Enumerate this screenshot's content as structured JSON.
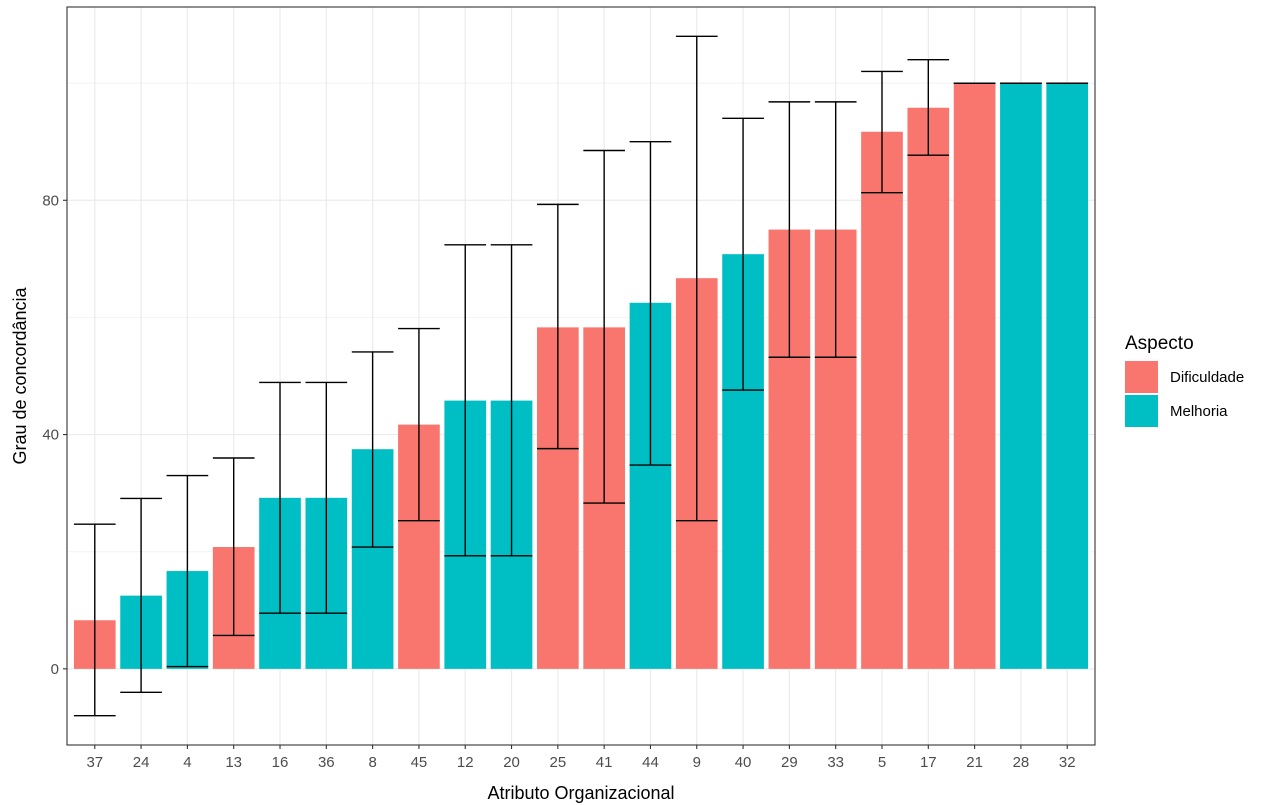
{
  "chart_data": {
    "type": "bar",
    "xlabel": "Atributo Organizacional",
    "ylabel": "Grau de concordância",
    "ylim": [
      -13,
      113
    ],
    "yticks": [
      "0",
      "40",
      "80"
    ],
    "grid": true,
    "legend": {
      "title": "Aspecto",
      "placement": "right",
      "entries": [
        {
          "name": "Dificuldade",
          "color": "#F8766D"
        },
        {
          "name": "Melhoria",
          "color": "#00BFC4"
        }
      ]
    },
    "categories": [
      "37",
      "24",
      "4",
      "13",
      "16",
      "36",
      "8",
      "45",
      "12",
      "20",
      "25",
      "41",
      "44",
      "9",
      "40",
      "29",
      "33",
      "5",
      "17",
      "21",
      "28",
      "32"
    ],
    "aspect": [
      "Dificuldade",
      "Melhoria",
      "Melhoria",
      "Dificuldade",
      "Melhoria",
      "Melhoria",
      "Melhoria",
      "Dificuldade",
      "Melhoria",
      "Melhoria",
      "Dificuldade",
      "Dificuldade",
      "Melhoria",
      "Dificuldade",
      "Melhoria",
      "Dificuldade",
      "Dificuldade",
      "Dificuldade",
      "Dificuldade",
      "Dificuldade",
      "Melhoria",
      "Melhoria"
    ],
    "values": [
      8.3,
      12.5,
      16.7,
      20.8,
      29.2,
      29.2,
      37.5,
      41.7,
      45.8,
      45.8,
      58.3,
      58.3,
      62.5,
      66.7,
      70.8,
      75.0,
      75.0,
      91.7,
      95.8,
      100.0,
      100.0,
      100.0
    ],
    "error_low": [
      -8,
      -4,
      0.4,
      5.7,
      9.5,
      9.5,
      20.8,
      25.3,
      19.3,
      19.3,
      37.6,
      28.3,
      34.8,
      25.3,
      47.6,
      53.2,
      53.2,
      81.3,
      87.7,
      100.0,
      100.0,
      100.0
    ],
    "error_high": [
      24.7,
      29.1,
      33.0,
      36.0,
      48.9,
      48.9,
      54.1,
      58.1,
      72.4,
      72.4,
      79.3,
      88.5,
      90.0,
      108.0,
      94.0,
      96.8,
      96.8,
      102.0,
      104.0,
      100.0,
      100.0,
      100.0
    ]
  }
}
